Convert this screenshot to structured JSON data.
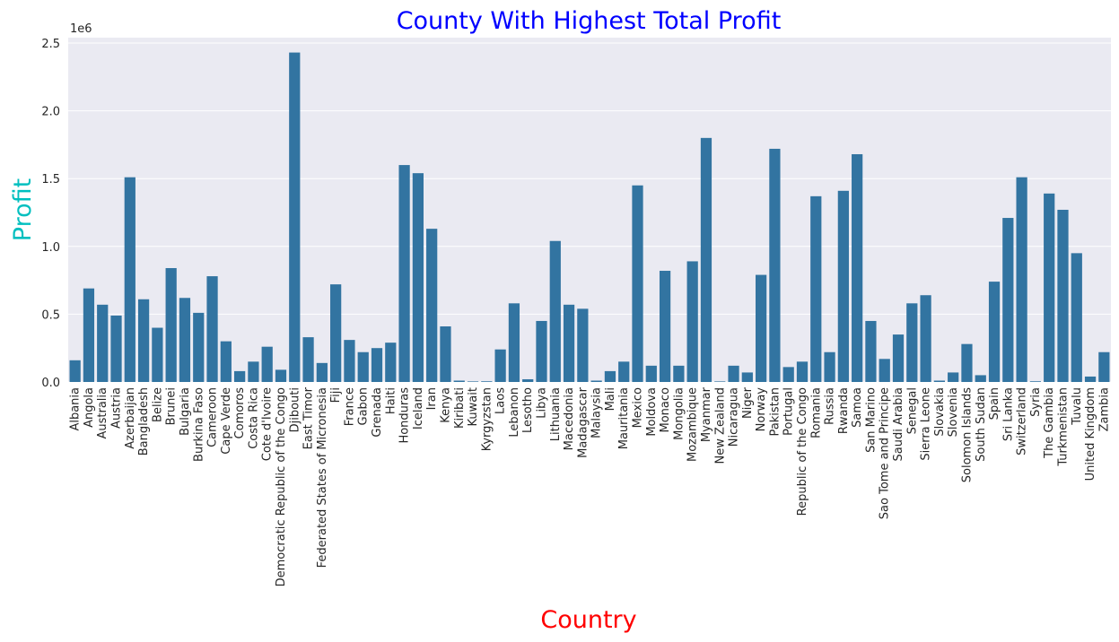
{
  "chart_data": {
    "type": "bar",
    "title": "County With Highest Total Profit",
    "xlabel": "Country",
    "ylabel": "Profit",
    "y_offset_text": "1e6",
    "ylim": [
      0,
      2.5
    ],
    "y_scale_multiplier": 1000000,
    "yticks": [
      0.0,
      0.5,
      1.0,
      1.5,
      2.0,
      2.5
    ],
    "ytick_labels": [
      "0.0",
      "0.5",
      "1.0",
      "1.5",
      "2.0",
      "2.5"
    ],
    "grid": true,
    "legend": "none",
    "colors": {
      "bar": "#3274a1",
      "plot_background": "#eaeaf2",
      "grid": "#ffffff",
      "title": "#0000ff",
      "xlabel": "#ff0000",
      "ylabel": "#00bfbf"
    },
    "categories": [
      "Albania",
      "Angola",
      "Australia",
      "Austria",
      "Azerbaijan",
      "Bangladesh",
      "Belize",
      "Brunei",
      "Bulgaria",
      "Burkina Faso",
      "Cameroon",
      "Cape Verde",
      "Comoros",
      "Costa Rica",
      "Cote d'Ivoire",
      "Democratic Republic of the Congo",
      "Djibouti",
      "East Timor",
      "Federated States of Micronesia",
      "Fiji",
      "France",
      "Gabon",
      "Grenada",
      "Haiti",
      "Honduras",
      "Iceland",
      "Iran",
      "Kenya",
      "Kiribati",
      "Kuwait",
      "Kyrgyzstan",
      "Laos",
      "Lebanon",
      "Lesotho",
      "Libya",
      "Lithuania",
      "Macedonia",
      "Madagascar",
      "Malaysia",
      "Mali",
      "Mauritania",
      "Mexico",
      "Moldova",
      "Monaco",
      "Mongolia",
      "Mozambique",
      "Myanmar",
      "New Zealand",
      "Nicaragua",
      "Niger",
      "Norway",
      "Pakistan",
      "Portugal",
      "Republic of the Congo",
      "Romania",
      "Russia",
      "Rwanda",
      "Samoa",
      "San Marino",
      "Sao Tome and Principe",
      "Saudi Arabia",
      "Senegal",
      "Sierra Leone",
      "Slovakia",
      "Slovenia",
      "Solomon Islands",
      "South Sudan",
      "Spain",
      "Sri Lanka",
      "Switzerland",
      "Syria",
      "The Gambia",
      "Turkmenistan",
      "Tuvalu",
      "United Kingdom",
      "Zambia"
    ],
    "values": [
      0.16,
      0.69,
      0.57,
      0.49,
      1.51,
      0.61,
      0.4,
      0.84,
      0.62,
      0.51,
      0.78,
      0.3,
      0.08,
      0.15,
      0.26,
      0.09,
      2.43,
      0.33,
      0.14,
      0.72,
      0.31,
      0.22,
      0.25,
      0.29,
      1.6,
      1.54,
      1.13,
      0.41,
      0.01,
      0.004,
      0.005,
      0.24,
      0.58,
      0.02,
      0.45,
      1.04,
      0.57,
      0.54,
      0.01,
      0.08,
      0.15,
      1.45,
      0.12,
      0.82,
      0.12,
      0.89,
      1.8,
      0.004,
      0.12,
      0.07,
      0.79,
      1.72,
      0.11,
      0.15,
      1.37,
      0.22,
      1.41,
      1.68,
      0.45,
      0.17,
      0.35,
      0.58,
      0.64,
      0.01,
      0.07,
      0.28,
      0.05,
      0.74,
      1.21,
      1.51,
      0.005,
      1.39,
      1.27,
      0.95,
      0.04,
      0.22
    ]
  }
}
